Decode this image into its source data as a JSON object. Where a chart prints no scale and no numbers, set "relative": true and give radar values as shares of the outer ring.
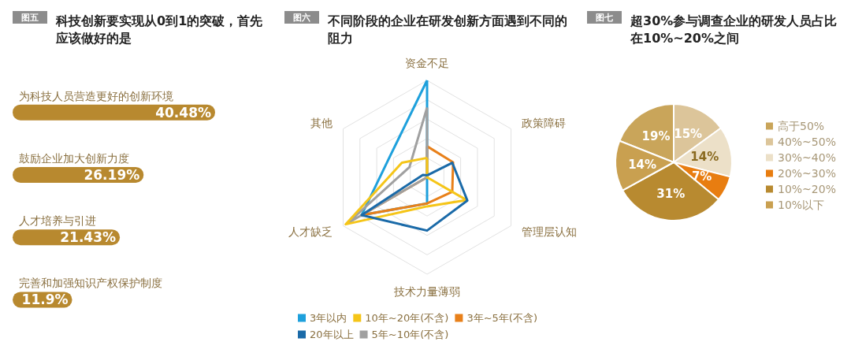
{
  "chart_data": [
    {
      "type": "bar",
      "orientation": "horizontal",
      "title": "科技创新要实现从0到1的突破，首先应该做好的是",
      "annotations": [
        "图五"
      ],
      "categories": [
        "为科技人员营造更好的创新环境",
        "鼓励企业加大创新力度",
        "人才培养与引进",
        "完善和加强知识产权保护制度"
      ],
      "values": [
        40.48,
        26.19,
        21.43,
        11.9
      ],
      "value_labels": [
        "40.48%",
        "26.19%",
        "21.43%",
        "11.9%"
      ],
      "color": "#b8892f"
    },
    {
      "type": "radar",
      "relative": true,
      "title": "不同阶段的企业在研发创新方面遇到不同的阻力",
      "annotations": [
        "图六"
      ],
      "legend": "bottom",
      "categories": [
        "资金不足",
        "政策障碍",
        "管理层认知",
        "技术力量薄弱",
        "人才缺乏",
        "其他"
      ],
      "series": [
        {
          "name": "3年以内",
          "color": "#1ea0dc",
          "values": [
            1,
            0,
            0,
            0.27,
            0.78,
            0.44
          ]
        },
        {
          "name": "3年~5年(不含)",
          "color": "#e8801a",
          "values": [
            0.32,
            0.31,
            0.3,
            0.27,
            0.78,
            0
          ]
        },
        {
          "name": "5年~10年(不含)",
          "color": "#a0a0a0",
          "values": [
            0.72,
            0,
            0,
            0,
            0.95,
            0.21
          ]
        },
        {
          "name": "10年~20年(不含)",
          "color": "#f5c518",
          "values": [
            0.2,
            0,
            0.47,
            0.3,
            0.97,
            0.3
          ]
        },
        {
          "name": "20年以上",
          "color": "#1a6aa8",
          "values": [
            0.02,
            0.3,
            0.48,
            0.55,
            0.78,
            0.05
          ]
        }
      ]
    },
    {
      "type": "pie",
      "title": "超30%参与调查企业的研发人员占比在10%~20%之间",
      "annotations": [
        "图七"
      ],
      "legend": "right",
      "categories": [
        "高于50%",
        "40%~50%",
        "30%~40%",
        "20%~30%",
        "10%~20%",
        "10%以下"
      ],
      "values": [
        19,
        15,
        14,
        7,
        31,
        14
      ],
      "value_labels": [
        "19%",
        "15%",
        "14%",
        "7%",
        "31%",
        "14%"
      ],
      "colors": [
        "#c9a55a",
        "#dcc59a",
        "#ece0c8",
        "#e87d10",
        "#b88a30",
        "#c9a050"
      ]
    }
  ]
}
